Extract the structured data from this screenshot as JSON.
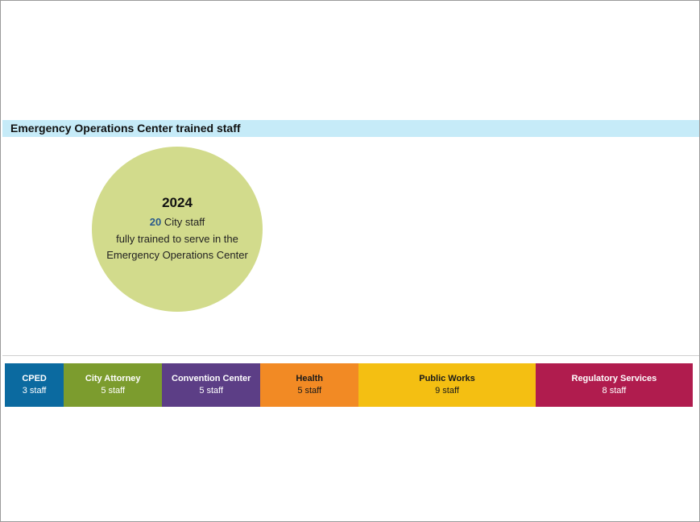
{
  "section": {
    "title": "Emergency Operations Center trained staff"
  },
  "summary": {
    "year": "2024",
    "count": "20",
    "line1_suffix": " City staff",
    "line2": "fully trained to serve in the",
    "line3": "Emergency Operations Center",
    "circle_color": "#d2db8c"
  },
  "departments": [
    {
      "name": "CPED",
      "staff": "3 staff",
      "color": "#0b6aa0",
      "text_color": "#ffffff",
      "share": 3
    },
    {
      "name": "City Attorney",
      "staff": "5 staff",
      "color": "#7c9c2e",
      "text_color": "#ffffff",
      "share": 5
    },
    {
      "name": "Convention Center",
      "staff": "5 staff",
      "color": "#5c3e86",
      "text_color": "#ffffff",
      "share": 5
    },
    {
      "name": "Health",
      "staff": "5 staff",
      "color": "#f28a24",
      "text_color": "#1a1a1a",
      "share": 5
    },
    {
      "name": "Public Works",
      "staff": "9 staff",
      "color": "#f4bf12",
      "text_color": "#1a1a1a",
      "share": 9
    },
    {
      "name": "Regulatory Services",
      "staff": "8 staff",
      "color": "#b01c4e",
      "text_color": "#ffffff",
      "share": 8
    }
  ]
}
